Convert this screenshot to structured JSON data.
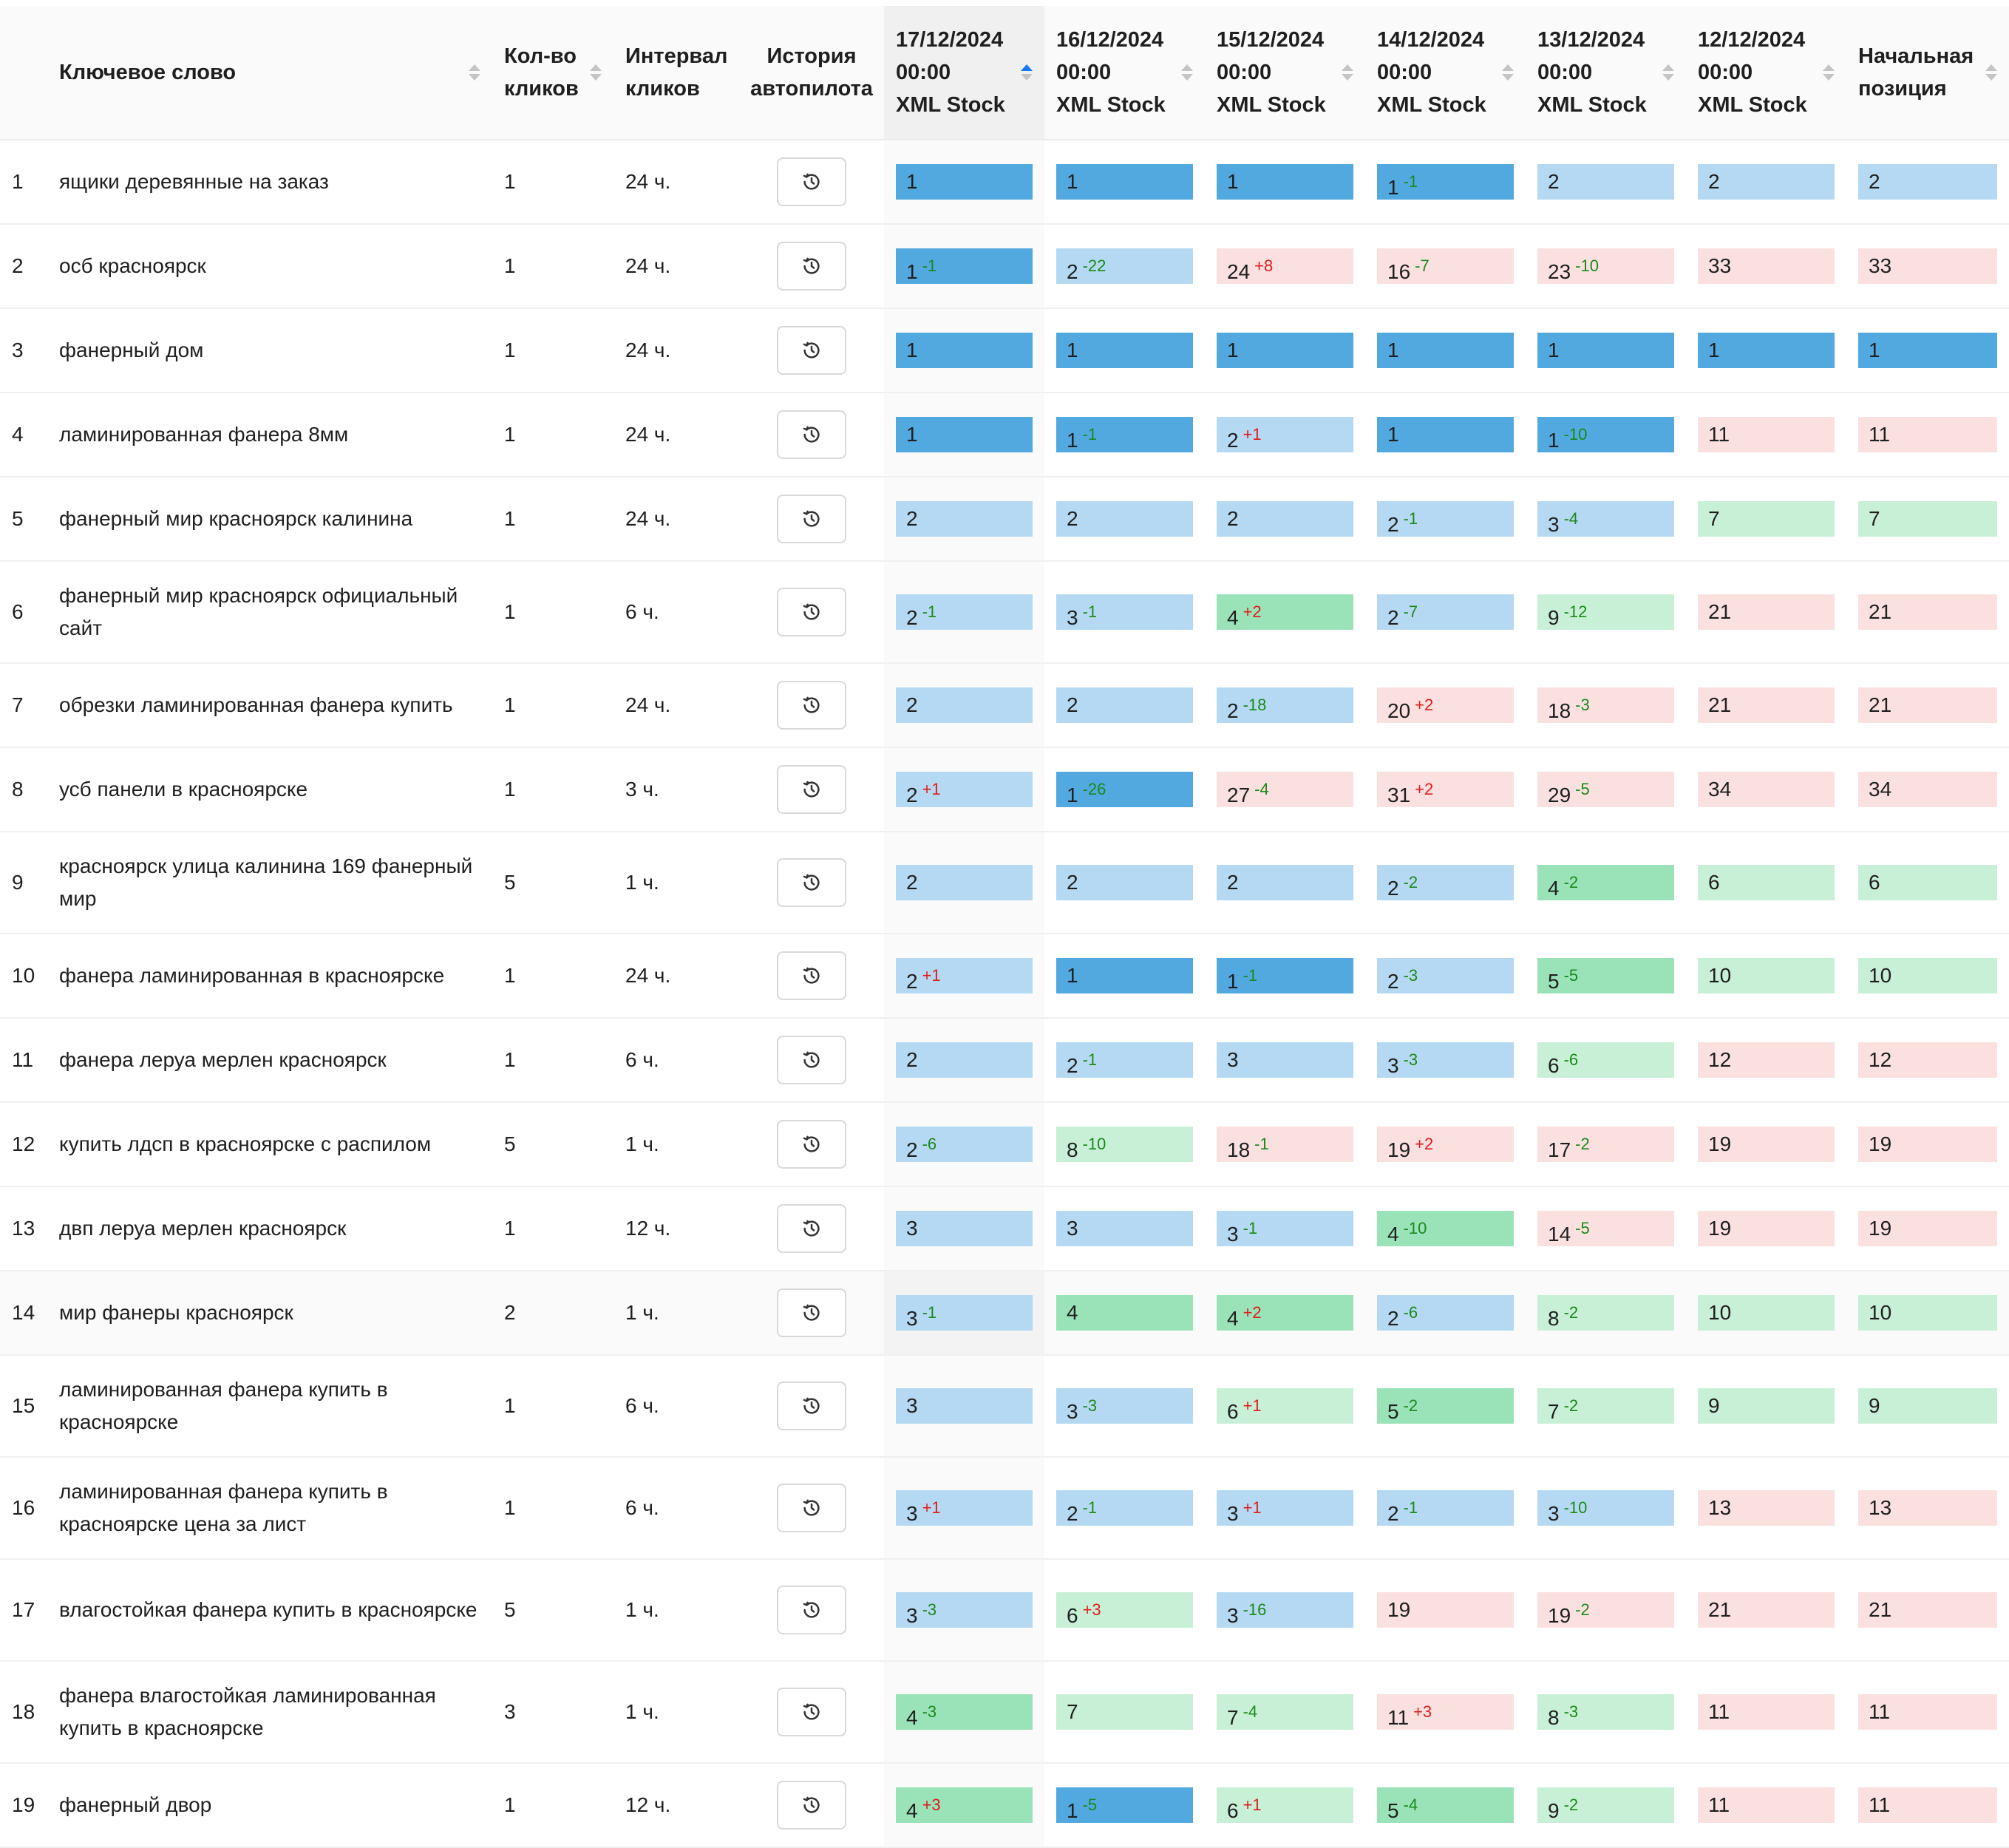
{
  "columns": {
    "keyword": "Ключевое слово",
    "clicks": "Кол-во\nкликов",
    "interval": "Интервал\nкликов",
    "history": "История\nавтопилота",
    "dates": [
      "17/12/2024\n00:00\nXML Stock",
      "16/12/2024\n00:00\nXML Stock",
      "15/12/2024\n00:00\nXML Stock",
      "14/12/2024\n00:00\nXML Stock",
      "13/12/2024\n00:00\nXML Stock",
      "12/12/2024\n00:00\nXML Stock"
    ],
    "start": "Начальная\nпозиция"
  },
  "sort": {
    "column": "17/12/2024",
    "direction": "ascending"
  },
  "colors": {
    "top1": "#52a9e0",
    "top3": "#b5d9f2",
    "top5": "#9ae3b9",
    "top10": "#c8f0d7",
    "below10": "#fbe0e0",
    "improved_delta": "#1a8a1a",
    "worsened_delta": "#e01b1b",
    "sort_active": "#1677ff"
  },
  "rows": [
    {
      "num": "1",
      "keyword": "ящики деревянные на заказ",
      "clicks": "1",
      "interval": "24 ч.",
      "history_icon": "clock-history-icon",
      "positions": [
        [
          1,
          null
        ],
        [
          1,
          null
        ],
        [
          1,
          null
        ],
        [
          1,
          "-1"
        ],
        [
          2,
          null
        ],
        [
          2,
          null
        ],
        [
          2,
          null
        ]
      ]
    },
    {
      "num": "2",
      "keyword": "осб красноярск",
      "clicks": "1",
      "interval": "24 ч.",
      "history_icon": "clock-history-icon",
      "positions": [
        [
          1,
          "-1"
        ],
        [
          2,
          "-22"
        ],
        [
          24,
          "+8"
        ],
        [
          16,
          "-7"
        ],
        [
          23,
          "-10"
        ],
        [
          33,
          null
        ],
        [
          33,
          null
        ]
      ]
    },
    {
      "num": "3",
      "keyword": "фанерный дом",
      "clicks": "1",
      "interval": "24 ч.",
      "history_icon": "clock-history-icon",
      "positions": [
        [
          1,
          null
        ],
        [
          1,
          null
        ],
        [
          1,
          null
        ],
        [
          1,
          null
        ],
        [
          1,
          null
        ],
        [
          1,
          null
        ],
        [
          1,
          null
        ]
      ]
    },
    {
      "num": "4",
      "keyword": "ламинированная фанера 8мм",
      "clicks": "1",
      "interval": "24 ч.",
      "history_icon": "clock-history-icon",
      "positions": [
        [
          1,
          null
        ],
        [
          1,
          "-1"
        ],
        [
          2,
          "+1"
        ],
        [
          1,
          null
        ],
        [
          1,
          "-10"
        ],
        [
          11,
          null
        ],
        [
          11,
          null
        ]
      ]
    },
    {
      "num": "5",
      "keyword": "фанерный мир красноярск калинина",
      "clicks": "1",
      "interval": "24 ч.",
      "history_icon": "clock-history-icon",
      "positions": [
        [
          2,
          null
        ],
        [
          2,
          null
        ],
        [
          2,
          null
        ],
        [
          2,
          "-1"
        ],
        [
          3,
          "-4"
        ],
        [
          7,
          null
        ],
        [
          7,
          null
        ]
      ]
    },
    {
      "num": "6",
      "keyword": "фанерный мир красноярск официальный сайт",
      "clicks": "1",
      "interval": "6 ч.",
      "history_icon": "clock-history-icon",
      "positions": [
        [
          2,
          "-1"
        ],
        [
          3,
          "-1"
        ],
        [
          4,
          "+2"
        ],
        [
          2,
          "-7"
        ],
        [
          9,
          "-12"
        ],
        [
          21,
          null
        ],
        [
          21,
          null
        ]
      ]
    },
    {
      "num": "7",
      "keyword": "обрезки ламинированная фанера купить",
      "clicks": "1",
      "interval": "24 ч.",
      "history_icon": "clock-history-icon",
      "positions": [
        [
          2,
          null
        ],
        [
          2,
          null
        ],
        [
          2,
          "-18"
        ],
        [
          20,
          "+2"
        ],
        [
          18,
          "-3"
        ],
        [
          21,
          null
        ],
        [
          21,
          null
        ]
      ]
    },
    {
      "num": "8",
      "keyword": "усб панели в красноярске",
      "clicks": "1",
      "interval": "3 ч.",
      "history_icon": "clock-history-icon",
      "positions": [
        [
          2,
          "+1"
        ],
        [
          1,
          "-26"
        ],
        [
          27,
          "-4"
        ],
        [
          31,
          "+2"
        ],
        [
          29,
          "-5"
        ],
        [
          34,
          null
        ],
        [
          34,
          null
        ]
      ]
    },
    {
      "num": "9",
      "keyword": "красноярск улица калинина 169 фанерный мир",
      "clicks": "5",
      "interval": "1 ч.",
      "history_icon": "clock-history-icon",
      "positions": [
        [
          2,
          null
        ],
        [
          2,
          null
        ],
        [
          2,
          null
        ],
        [
          2,
          "-2"
        ],
        [
          4,
          "-2"
        ],
        [
          6,
          null
        ],
        [
          6,
          null
        ]
      ]
    },
    {
      "num": "10",
      "keyword": "фанера ламинированная в красноярске",
      "clicks": "1",
      "interval": "24 ч.",
      "history_icon": "clock-history-icon",
      "positions": [
        [
          2,
          "+1"
        ],
        [
          1,
          null
        ],
        [
          1,
          "-1"
        ],
        [
          2,
          "-3"
        ],
        [
          5,
          "-5"
        ],
        [
          10,
          null
        ],
        [
          10,
          null
        ]
      ]
    },
    {
      "num": "11",
      "keyword": "фанера леруа мерлен красноярск",
      "clicks": "1",
      "interval": "6 ч.",
      "history_icon": "clock-history-icon",
      "positions": [
        [
          2,
          null
        ],
        [
          2,
          "-1"
        ],
        [
          3,
          null
        ],
        [
          3,
          "-3"
        ],
        [
          6,
          "-6"
        ],
        [
          12,
          null
        ],
        [
          12,
          null
        ]
      ]
    },
    {
      "num": "12",
      "keyword": "купить лдсп в красноярске с распилом",
      "clicks": "5",
      "interval": "1 ч.",
      "history_icon": "clock-history-icon",
      "positions": [
        [
          2,
          "-6"
        ],
        [
          8,
          "-10"
        ],
        [
          18,
          "-1"
        ],
        [
          19,
          "+2"
        ],
        [
          17,
          "-2"
        ],
        [
          19,
          null
        ],
        [
          19,
          null
        ]
      ]
    },
    {
      "num": "13",
      "keyword": "двп леруа мерлен красноярск",
      "clicks": "1",
      "interval": "12 ч.",
      "history_icon": "clock-history-icon",
      "positions": [
        [
          3,
          null
        ],
        [
          3,
          null
        ],
        [
          3,
          "-1"
        ],
        [
          4,
          "-10"
        ],
        [
          14,
          "-5"
        ],
        [
          19,
          null
        ],
        [
          19,
          null
        ]
      ]
    },
    {
      "num": "14",
      "keyword": "мир фанеры красноярск",
      "clicks": "2",
      "interval": "1 ч.",
      "history_icon": "clock-history-icon",
      "hovered": true,
      "positions": [
        [
          3,
          "-1"
        ],
        [
          4,
          null
        ],
        [
          4,
          "+2"
        ],
        [
          2,
          "-6"
        ],
        [
          8,
          "-2"
        ],
        [
          10,
          null
        ],
        [
          10,
          null
        ]
      ]
    },
    {
      "num": "15",
      "keyword": "ламинированная фанера купить в красноярске",
      "clicks": "1",
      "interval": "6 ч.",
      "history_icon": "clock-history-icon",
      "positions": [
        [
          3,
          null
        ],
        [
          3,
          "-3"
        ],
        [
          6,
          "+1"
        ],
        [
          5,
          "-2"
        ],
        [
          7,
          "-2"
        ],
        [
          9,
          null
        ],
        [
          9,
          null
        ]
      ]
    },
    {
      "num": "16",
      "keyword": "ламинированная фанера купить в красноярске цена за лист",
      "clicks": "1",
      "interval": "6 ч.",
      "history_icon": "clock-history-icon",
      "positions": [
        [
          3,
          "+1"
        ],
        [
          2,
          "-1"
        ],
        [
          3,
          "+1"
        ],
        [
          2,
          "-1"
        ],
        [
          3,
          "-10"
        ],
        [
          13,
          null
        ],
        [
          13,
          null
        ]
      ]
    },
    {
      "num": "17",
      "keyword": "влагостойкая фанера купить в красноярске",
      "clicks": "5",
      "interval": "1 ч.",
      "history_icon": "clock-history-icon",
      "positions": [
        [
          3,
          "-3"
        ],
        [
          6,
          "+3"
        ],
        [
          3,
          "-16"
        ],
        [
          19,
          null
        ],
        [
          19,
          "-2"
        ],
        [
          21,
          null
        ],
        [
          21,
          null
        ]
      ]
    },
    {
      "num": "18",
      "keyword": "фанера влагостойкая ламинированная купить в красноярске",
      "clicks": "3",
      "interval": "1 ч.",
      "history_icon": "clock-history-icon",
      "positions": [
        [
          4,
          "-3"
        ],
        [
          7,
          null
        ],
        [
          7,
          "-4"
        ],
        [
          11,
          "+3"
        ],
        [
          8,
          "-3"
        ],
        [
          11,
          null
        ],
        [
          11,
          null
        ]
      ]
    },
    {
      "num": "19",
      "keyword": "фанерный двор",
      "clicks": "1",
      "interval": "12 ч.",
      "history_icon": "clock-history-icon",
      "positions": [
        [
          4,
          "+3"
        ],
        [
          1,
          "-5"
        ],
        [
          6,
          "+1"
        ],
        [
          5,
          "-4"
        ],
        [
          9,
          "-2"
        ],
        [
          11,
          null
        ],
        [
          11,
          null
        ]
      ]
    }
  ]
}
